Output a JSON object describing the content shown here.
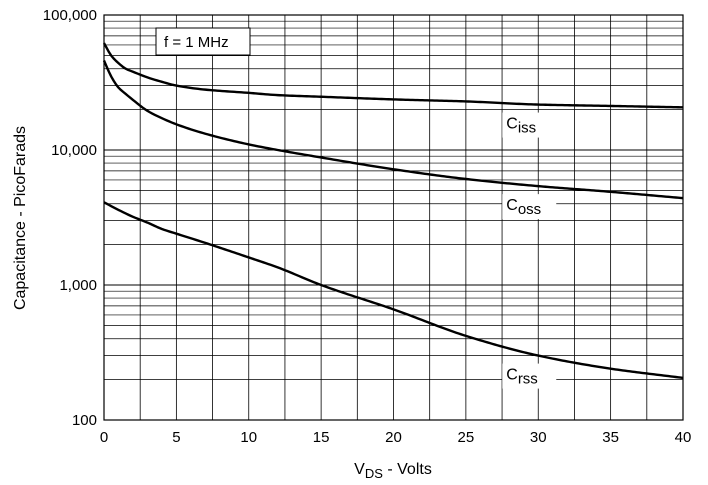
{
  "chart_data": {
    "type": "line",
    "title": "",
    "xlabel_main": "V",
    "xlabel_sub": "DS",
    "xlabel_rest": " - Volts",
    "ylabel": "Capacitance - PicoFarads",
    "xlim": [
      0,
      40
    ],
    "ylim": [
      100,
      100000
    ],
    "yscale": "log",
    "grid": true,
    "x_ticks": [
      0,
      5,
      10,
      15,
      20,
      25,
      30,
      35,
      40
    ],
    "x_tick_labels": [
      "0",
      "5",
      "10",
      "15",
      "20",
      "25",
      "30",
      "35",
      "40"
    ],
    "y_ticks": [
      100,
      1000,
      10000,
      100000
    ],
    "y_tick_labels": [
      "100",
      "1,000",
      "10,000",
      "100,000"
    ],
    "annotation": "f = 1 MHz",
    "series": [
      {
        "name": "Ciss",
        "label_main": "C",
        "label_sub": "iss",
        "label_x": 30,
        "x": [
          0,
          0.5,
          1,
          1.5,
          2,
          3,
          4,
          5,
          7,
          10,
          12,
          15,
          20,
          25,
          30,
          35,
          40
        ],
        "values": [
          62000,
          50000,
          44000,
          40000,
          38000,
          34500,
          32000,
          30000,
          28000,
          26500,
          25500,
          24800,
          23700,
          22900,
          21700,
          21200,
          20700
        ]
      },
      {
        "name": "Coss",
        "label_main": "C",
        "label_sub": "oss",
        "label_x": 30,
        "x": [
          0,
          0.5,
          1,
          1.5,
          2,
          3,
          4,
          5,
          7,
          10,
          12,
          15,
          20,
          25,
          30,
          35,
          40
        ],
        "values": [
          46000,
          35000,
          29000,
          26000,
          23500,
          19500,
          17200,
          15500,
          13200,
          11000,
          10000,
          8800,
          7200,
          6100,
          5400,
          4900,
          4400
        ]
      },
      {
        "name": "Crss",
        "label_main": "C",
        "label_sub": "rss",
        "label_x": 30,
        "x": [
          0,
          1,
          2,
          3,
          4,
          5,
          7,
          10,
          12,
          15,
          20,
          25,
          30,
          35,
          40
        ],
        "values": [
          4100,
          3600,
          3200,
          2900,
          2600,
          2400,
          2050,
          1600,
          1350,
          1000,
          660,
          420,
          300,
          240,
          205
        ]
      }
    ]
  }
}
